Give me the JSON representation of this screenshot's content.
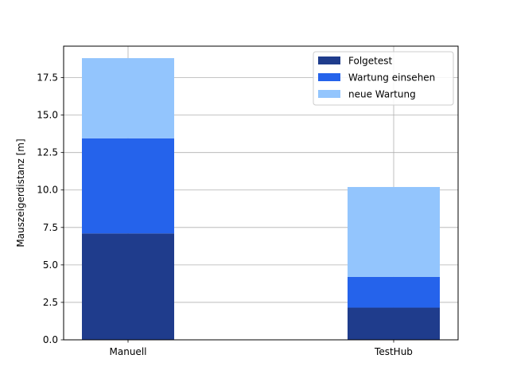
{
  "chart_data": {
    "type": "bar",
    "stacked": true,
    "categories": [
      "Manuell",
      "TestHub"
    ],
    "series": [
      {
        "name": "Folgetest",
        "values": [
          7.1,
          2.15
        ],
        "color": "#1f3c8c"
      },
      {
        "name": "Wartung einsehen",
        "values": [
          6.35,
          2.05
        ],
        "color": "#2563eb"
      },
      {
        "name": "neue Wartung",
        "values": [
          5.35,
          6.0
        ],
        "color": "#93c5fd"
      }
    ],
    "ylabel": "Mauszeigerdistanz [m]",
    "xlabel": "",
    "ylim": [
      0,
      19.6
    ],
    "yticks": [
      "0.0",
      "2.5",
      "5.0",
      "7.5",
      "10.0",
      "12.5",
      "15.0",
      "17.5"
    ],
    "grid": true,
    "legend": "top-right"
  }
}
